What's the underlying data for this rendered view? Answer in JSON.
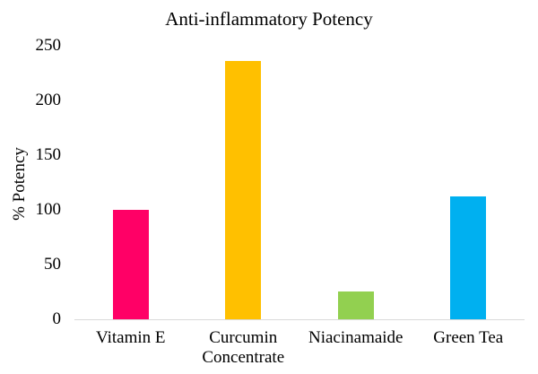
{
  "chart_data": {
    "type": "bar",
    "title": "Anti-inflammatory Potency",
    "xlabel": "",
    "ylabel": "% Potency",
    "categories": [
      "Vitamin E",
      "Curcumin Concentrate",
      "Niacinamaide",
      "Green Tea"
    ],
    "values": [
      100,
      236,
      25,
      112
    ],
    "bar_colors": [
      "#FF0066",
      "#FFC000",
      "#92D050",
      "#00B0F0"
    ],
    "ylim": [
      0,
      250
    ],
    "yticks": [
      0,
      50,
      100,
      150,
      200,
      250
    ],
    "grid": false,
    "legend": "none",
    "axis_line_color": "#D9D9D9",
    "text_color": "#000000",
    "background_color": "#FFFFFF"
  }
}
